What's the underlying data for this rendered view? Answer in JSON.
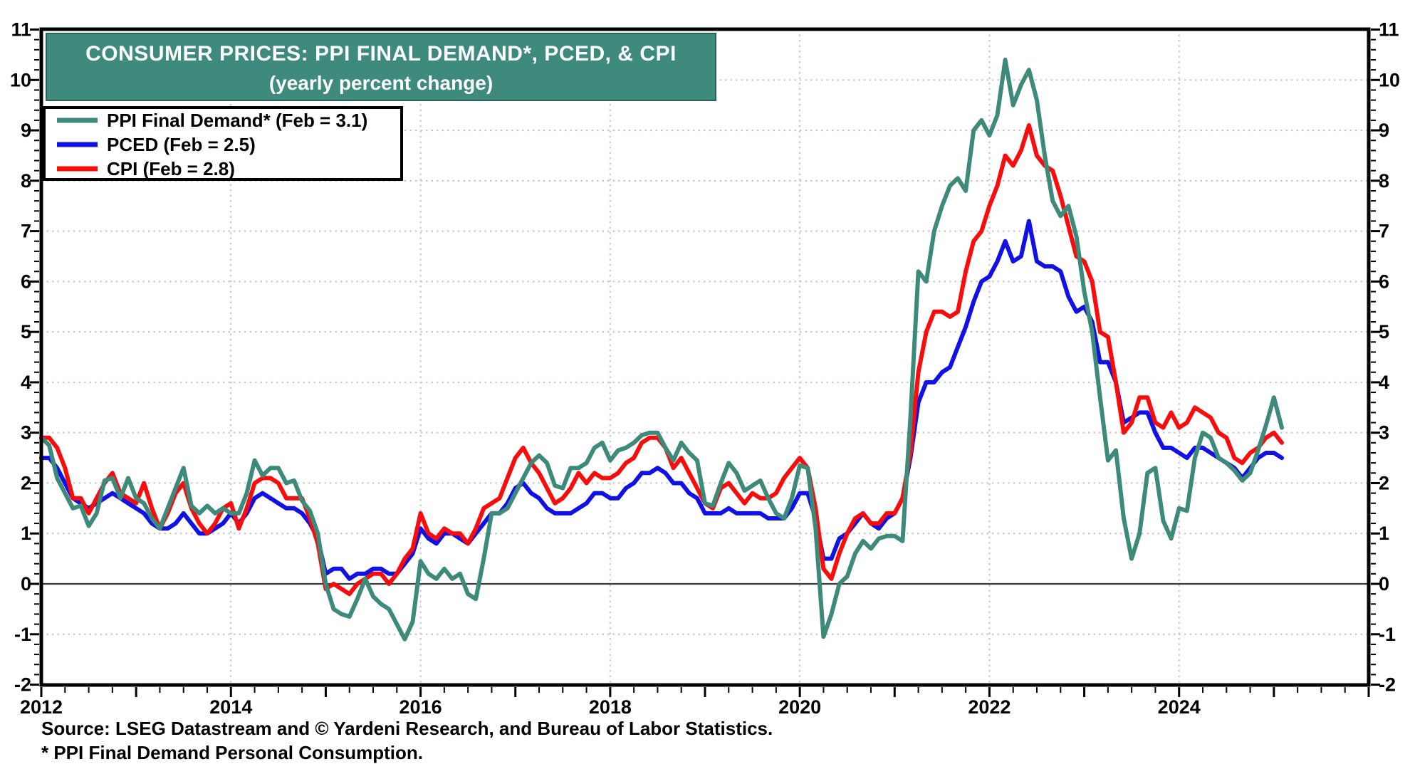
{
  "chart_data": {
    "type": "line",
    "title": "CONSUMER PRICES: PPI FINAL DEMAND*, PCED, & CPI",
    "subtitle": "(yearly percent change)",
    "x_start": "2012-01",
    "x_end": "2025-02",
    "frequency": "monthly",
    "xlim_years": [
      2012,
      2026
    ],
    "ylim": [
      -2,
      11
    ],
    "y_ticks": [
      -2,
      -1,
      0,
      1,
      2,
      3,
      4,
      5,
      6,
      7,
      8,
      9,
      10,
      11
    ],
    "x_tick_labels": [
      "2012",
      "2014",
      "2016",
      "2018",
      "2020",
      "2022",
      "2024"
    ],
    "x_tick_years": [
      2012,
      2014,
      2016,
      2018,
      2020,
      2022,
      2024
    ],
    "grid": "dotted gray horizontal lines at integers and vertical lines at even years; solid dark line at zero",
    "legend_position": "top-left",
    "series": [
      {
        "name": "PPI Final Demand* (Feb = 3.1)",
        "color": "#3D8A7B",
        "latest_label": "Feb = 3.1",
        "values": [
          2.9,
          2.75,
          2.1,
          1.8,
          1.5,
          1.55,
          1.15,
          1.4,
          2.05,
          2.1,
          1.7,
          2.1,
          1.7,
          1.6,
          1.3,
          1.1,
          1.5,
          1.9,
          2.3,
          1.55,
          1.4,
          1.55,
          1.4,
          1.5,
          1.4,
          1.4,
          1.8,
          2.45,
          2.15,
          2.3,
          2.3,
          2.0,
          2.05,
          1.65,
          1.45,
          1.0,
          0.0,
          -0.5,
          -0.6,
          -0.65,
          -0.3,
          0.1,
          -0.25,
          -0.4,
          -0.5,
          -0.8,
          -1.1,
          -0.75,
          0.45,
          0.2,
          0.1,
          0.3,
          0.1,
          0.2,
          -0.2,
          -0.3,
          0.5,
          1.4,
          1.4,
          1.5,
          1.8,
          2.1,
          2.4,
          2.55,
          2.4,
          1.95,
          1.9,
          2.3,
          2.3,
          2.4,
          2.7,
          2.8,
          2.45,
          2.65,
          2.7,
          2.8,
          2.95,
          3.0,
          3.0,
          2.7,
          2.45,
          2.8,
          2.6,
          2.45,
          1.6,
          1.55,
          2.0,
          2.4,
          2.2,
          1.85,
          1.95,
          2.05,
          1.7,
          1.4,
          1.3,
          1.7,
          2.35,
          2.3,
          1.1,
          -1.05,
          -0.6,
          0.0,
          0.15,
          0.6,
          0.85,
          0.7,
          0.9,
          0.95,
          0.95,
          0.85,
          3.3,
          6.2,
          6.0,
          7.0,
          7.5,
          7.9,
          8.05,
          7.8,
          9.0,
          9.2,
          8.9,
          9.3,
          10.4,
          9.5,
          9.9,
          10.2,
          9.6,
          8.5,
          7.6,
          7.3,
          7.5,
          6.9,
          5.8,
          5.0,
          3.7,
          2.45,
          2.65,
          1.3,
          0.5,
          1.0,
          2.2,
          2.3,
          1.25,
          0.9,
          1.5,
          1.45,
          2.5,
          3.0,
          2.9,
          2.5,
          2.4,
          2.25,
          2.05,
          2.2,
          2.65,
          3.15,
          3.7,
          3.1
        ]
      },
      {
        "name": "PCED (Feb = 2.5)",
        "color": "#1111E6",
        "latest_label": "Feb = 2.5",
        "values": [
          2.5,
          2.5,
          2.3,
          2.0,
          1.7,
          1.6,
          1.5,
          1.6,
          1.7,
          1.8,
          1.7,
          1.6,
          1.5,
          1.4,
          1.2,
          1.1,
          1.1,
          1.2,
          1.4,
          1.2,
          1.0,
          1.0,
          1.1,
          1.2,
          1.4,
          1.2,
          1.4,
          1.7,
          1.8,
          1.7,
          1.6,
          1.5,
          1.5,
          1.4,
          1.2,
          0.9,
          0.2,
          0.3,
          0.3,
          0.1,
          0.2,
          0.2,
          0.3,
          0.3,
          0.2,
          0.2,
          0.4,
          0.6,
          1.1,
          0.9,
          0.8,
          1.0,
          1.0,
          0.9,
          0.8,
          1.0,
          1.2,
          1.4,
          1.4,
          1.6,
          1.9,
          2.0,
          1.8,
          1.7,
          1.5,
          1.4,
          1.4,
          1.4,
          1.5,
          1.6,
          1.8,
          1.8,
          1.7,
          1.7,
          1.9,
          2.0,
          2.2,
          2.2,
          2.3,
          2.2,
          2.0,
          2.0,
          1.8,
          1.7,
          1.4,
          1.4,
          1.4,
          1.5,
          1.4,
          1.4,
          1.4,
          1.4,
          1.3,
          1.3,
          1.3,
          1.5,
          1.8,
          1.8,
          1.3,
          0.5,
          0.5,
          0.9,
          1.0,
          1.2,
          1.4,
          1.2,
          1.1,
          1.3,
          1.4,
          1.7,
          2.5,
          3.6,
          4.0,
          4.0,
          4.2,
          4.3,
          4.7,
          5.1,
          5.6,
          6.0,
          6.1,
          6.4,
          6.8,
          6.4,
          6.5,
          7.2,
          6.4,
          6.3,
          6.3,
          6.2,
          5.7,
          5.4,
          5.5,
          5.2,
          4.4,
          4.4,
          4.0,
          3.2,
          3.3,
          3.4,
          3.4,
          3.0,
          2.7,
          2.7,
          2.6,
          2.5,
          2.7,
          2.7,
          2.6,
          2.5,
          2.4,
          2.3,
          2.1,
          2.3,
          2.5,
          2.6,
          2.6,
          2.5
        ]
      },
      {
        "name": "CPI (Feb = 2.8)",
        "color": "#F80D0D",
        "latest_label": "Feb = 2.8",
        "values": [
          2.9,
          2.9,
          2.7,
          2.3,
          1.7,
          1.7,
          1.4,
          1.7,
          2.0,
          2.2,
          1.8,
          1.7,
          1.6,
          2.0,
          1.5,
          1.1,
          1.4,
          1.8,
          2.0,
          1.5,
          1.2,
          1.0,
          1.2,
          1.5,
          1.6,
          1.1,
          1.5,
          2.0,
          2.1,
          2.1,
          2.0,
          1.7,
          1.7,
          1.7,
          1.3,
          0.8,
          -0.1,
          0.0,
          -0.1,
          -0.2,
          0.0,
          0.1,
          0.2,
          0.2,
          0.0,
          0.2,
          0.5,
          0.7,
          1.4,
          1.0,
          0.9,
          1.1,
          1.0,
          1.0,
          0.8,
          1.1,
          1.5,
          1.6,
          1.7,
          2.1,
          2.5,
          2.7,
          2.4,
          2.2,
          1.9,
          1.6,
          1.7,
          1.9,
          2.2,
          2.0,
          2.2,
          2.1,
          2.1,
          2.2,
          2.4,
          2.5,
          2.8,
          2.9,
          2.9,
          2.7,
          2.3,
          2.5,
          2.2,
          1.9,
          1.6,
          1.5,
          1.9,
          2.0,
          1.8,
          1.6,
          1.8,
          1.7,
          1.7,
          1.8,
          2.1,
          2.3,
          2.5,
          2.3,
          1.5,
          0.3,
          0.1,
          0.6,
          1.0,
          1.3,
          1.4,
          1.2,
          1.2,
          1.4,
          1.4,
          1.7,
          2.6,
          4.2,
          5.0,
          5.4,
          5.4,
          5.3,
          5.4,
          6.2,
          6.8,
          7.0,
          7.5,
          7.9,
          8.5,
          8.3,
          8.6,
          9.1,
          8.5,
          8.3,
          8.2,
          7.7,
          7.1,
          6.5,
          6.4,
          6.0,
          5.0,
          4.9,
          4.0,
          3.0,
          3.2,
          3.7,
          3.7,
          3.2,
          3.1,
          3.4,
          3.1,
          3.2,
          3.5,
          3.4,
          3.3,
          3.0,
          2.9,
          2.5,
          2.4,
          2.6,
          2.7,
          2.9,
          3.0,
          2.8
        ]
      }
    ]
  },
  "footer": {
    "source": "Source: LSEG Datastream and © Yardeni Research, and Bureau of Labor Statistics.",
    "footnote": "* PPI Final Demand Personal Consumption."
  },
  "colors": {
    "banner_fill": "#3E8B7E",
    "banner_text": "#FFFFFF",
    "grid": "#C9C9C9",
    "zero_line": "#3A3A3A",
    "axis": "#000000",
    "legend_border": "#000000",
    "legend_fill": "#FFFFFF",
    "tick_label": "#000000"
  }
}
